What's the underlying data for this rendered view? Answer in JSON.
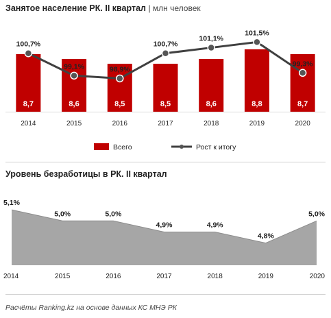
{
  "chart1": {
    "title": "Занятое население РК. II квартал",
    "unit": "| млн человек",
    "legend": {
      "bars": "Всего",
      "line": "Рост к итогу"
    },
    "colors": {
      "bar": "#c00000",
      "line": "#404040"
    }
  },
  "chart2": {
    "title": "Уровень безработицы в РК. II квартал",
    "colors": {
      "area": "#a6a6a6"
    }
  },
  "source": "Расчёты Ranking.kz на основе данных КС МНЭ РК",
  "chart_data": [
    {
      "type": "bar",
      "categories": [
        "2014",
        "2015",
        "2016",
        "2017",
        "2018",
        "2019",
        "2020"
      ],
      "series": [
        {
          "name": "Всего",
          "type": "bar",
          "values": [
            8.7,
            8.6,
            8.5,
            8.5,
            8.6,
            8.8,
            8.7
          ],
          "labels": [
            "8,7",
            "8,6",
            "8,5",
            "8,5",
            "8,6",
            "8,8",
            "8,7"
          ]
        },
        {
          "name": "Рост к итогу",
          "type": "line",
          "values": [
            100.7,
            99.1,
            98.9,
            100.7,
            101.1,
            101.5,
            99.3
          ],
          "labels": [
            "100,7%",
            "99,1%",
            "98,9%",
            "100,7%",
            "101,1%",
            "101,5%",
            "99,3%"
          ]
        }
      ],
      "title": "Занятое население РК. II квартал",
      "ylim": [
        7.5,
        9.0
      ],
      "ylim_line": [
        97.5,
        102.5
      ],
      "grid": false,
      "legend_position": "bottom"
    },
    {
      "type": "area",
      "categories": [
        "2014",
        "2015",
        "2016",
        "2017",
        "2018",
        "2019",
        "2020"
      ],
      "values": [
        5.1,
        5.0,
        5.0,
        4.9,
        4.9,
        4.8,
        5.0
      ],
      "labels": [
        "5,1%",
        "5,0%",
        "5,0%",
        "4,9%",
        "4,9%",
        "4,8%",
        "5,0%"
      ],
      "title": "Уровень безработицы в РК. II квартал",
      "ylim": [
        4.6,
        5.15
      ],
      "grid": false
    }
  ]
}
